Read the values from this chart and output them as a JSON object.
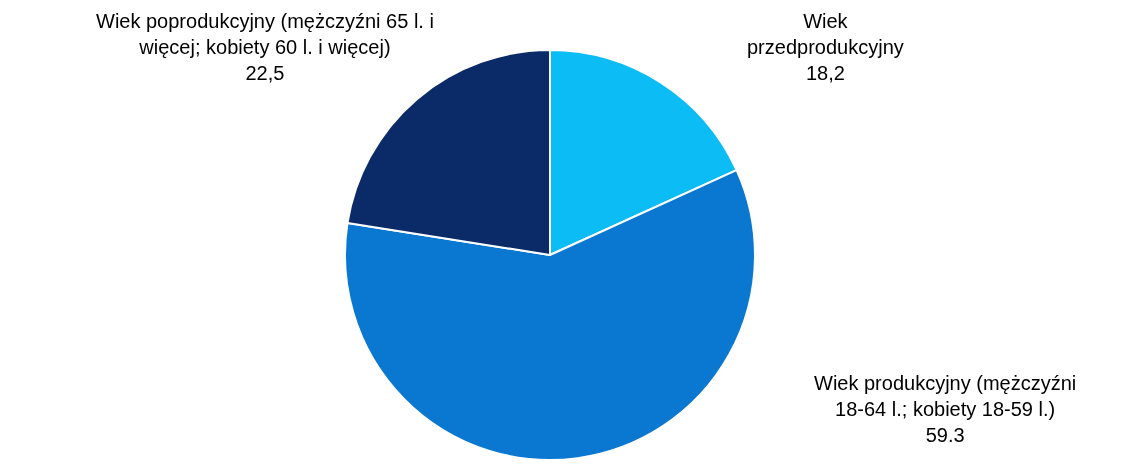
{
  "chart_data": {
    "type": "pie",
    "categories": [
      "Wiek przedprodukcyjny",
      "Wiek produkcyjny (mężczyźni 18-64 l.; kobiety 18-59 l.)",
      "Wiek poprodukcyjny (mężczyźni 65 l. i więcej; kobiety 60 l. i więcej)"
    ],
    "values": [
      18.2,
      59.3,
      22.5
    ],
    "value_labels": [
      "18,2",
      "59.3",
      "22,5"
    ],
    "colors": [
      "#0bbcf5",
      "#0a78d0",
      "#0b2a68"
    ],
    "legend": false
  }
}
